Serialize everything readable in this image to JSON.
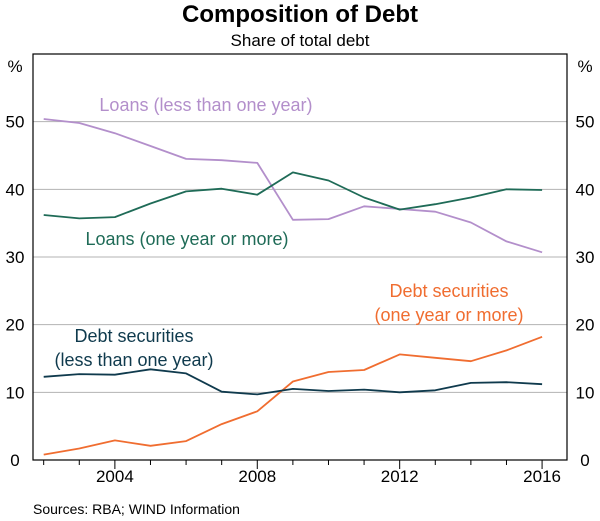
{
  "chart_data": {
    "type": "line",
    "title": "Composition of Debt",
    "subtitle": "Share of total debt",
    "unit_left": "%",
    "unit_right": "%",
    "source": "Sources: RBA; WIND Information",
    "x": [
      2002,
      2003,
      2004,
      2005,
      2006,
      2007,
      2008,
      2009,
      2010,
      2011,
      2012,
      2013,
      2014,
      2015,
      2016
    ],
    "xlim": [
      2001.7,
      2016.7
    ],
    "ylim": [
      0,
      60
    ],
    "x_ticks": [
      2004,
      2008,
      2012,
      2016
    ],
    "x_tick_labels": [
      "2004",
      "2008",
      "2012",
      "2016"
    ],
    "y_ticks": [
      0,
      10,
      20,
      30,
      40,
      50
    ],
    "y_tick_labels": [
      "0",
      "10",
      "20",
      "30",
      "40",
      "50"
    ],
    "grid": true,
    "series": [
      {
        "name": "Loans (less than one year)",
        "label_lines": [
          "Loans (less than one year)"
        ],
        "color": "#b38fcb",
        "values": [
          50.4,
          49.8,
          48.3,
          46.4,
          44.5,
          44.3,
          43.9,
          35.5,
          35.6,
          37.5,
          37.1,
          36.7,
          35.1,
          32.3,
          30.7
        ]
      },
      {
        "name": "Loans (one year or more)",
        "label_lines": [
          "Loans (one year or more)"
        ],
        "color": "#1f6b57",
        "values": [
          36.2,
          35.7,
          35.9,
          37.9,
          39.7,
          40.1,
          39.2,
          42.5,
          41.3,
          38.8,
          37.0,
          37.8,
          38.8,
          40.0,
          39.9
        ]
      },
      {
        "name": "Debt securities (one year or more)",
        "label_lines": [
          "Debt securities",
          "(one year or more)"
        ],
        "color": "#f06d30",
        "values": [
          0.8,
          1.7,
          2.9,
          2.1,
          2.8,
          5.3,
          7.2,
          11.6,
          13.0,
          13.3,
          15.6,
          15.1,
          14.6,
          16.2,
          18.2
        ]
      },
      {
        "name": "Debt securities (less than one year)",
        "label_lines": [
          "Debt securities",
          "(less than one year)"
        ],
        "color": "#0f3a4d",
        "values": [
          12.3,
          12.7,
          12.6,
          13.4,
          12.8,
          10.1,
          9.7,
          10.5,
          10.2,
          10.4,
          10.0,
          10.3,
          11.4,
          11.5,
          11.2
        ]
      }
    ]
  }
}
